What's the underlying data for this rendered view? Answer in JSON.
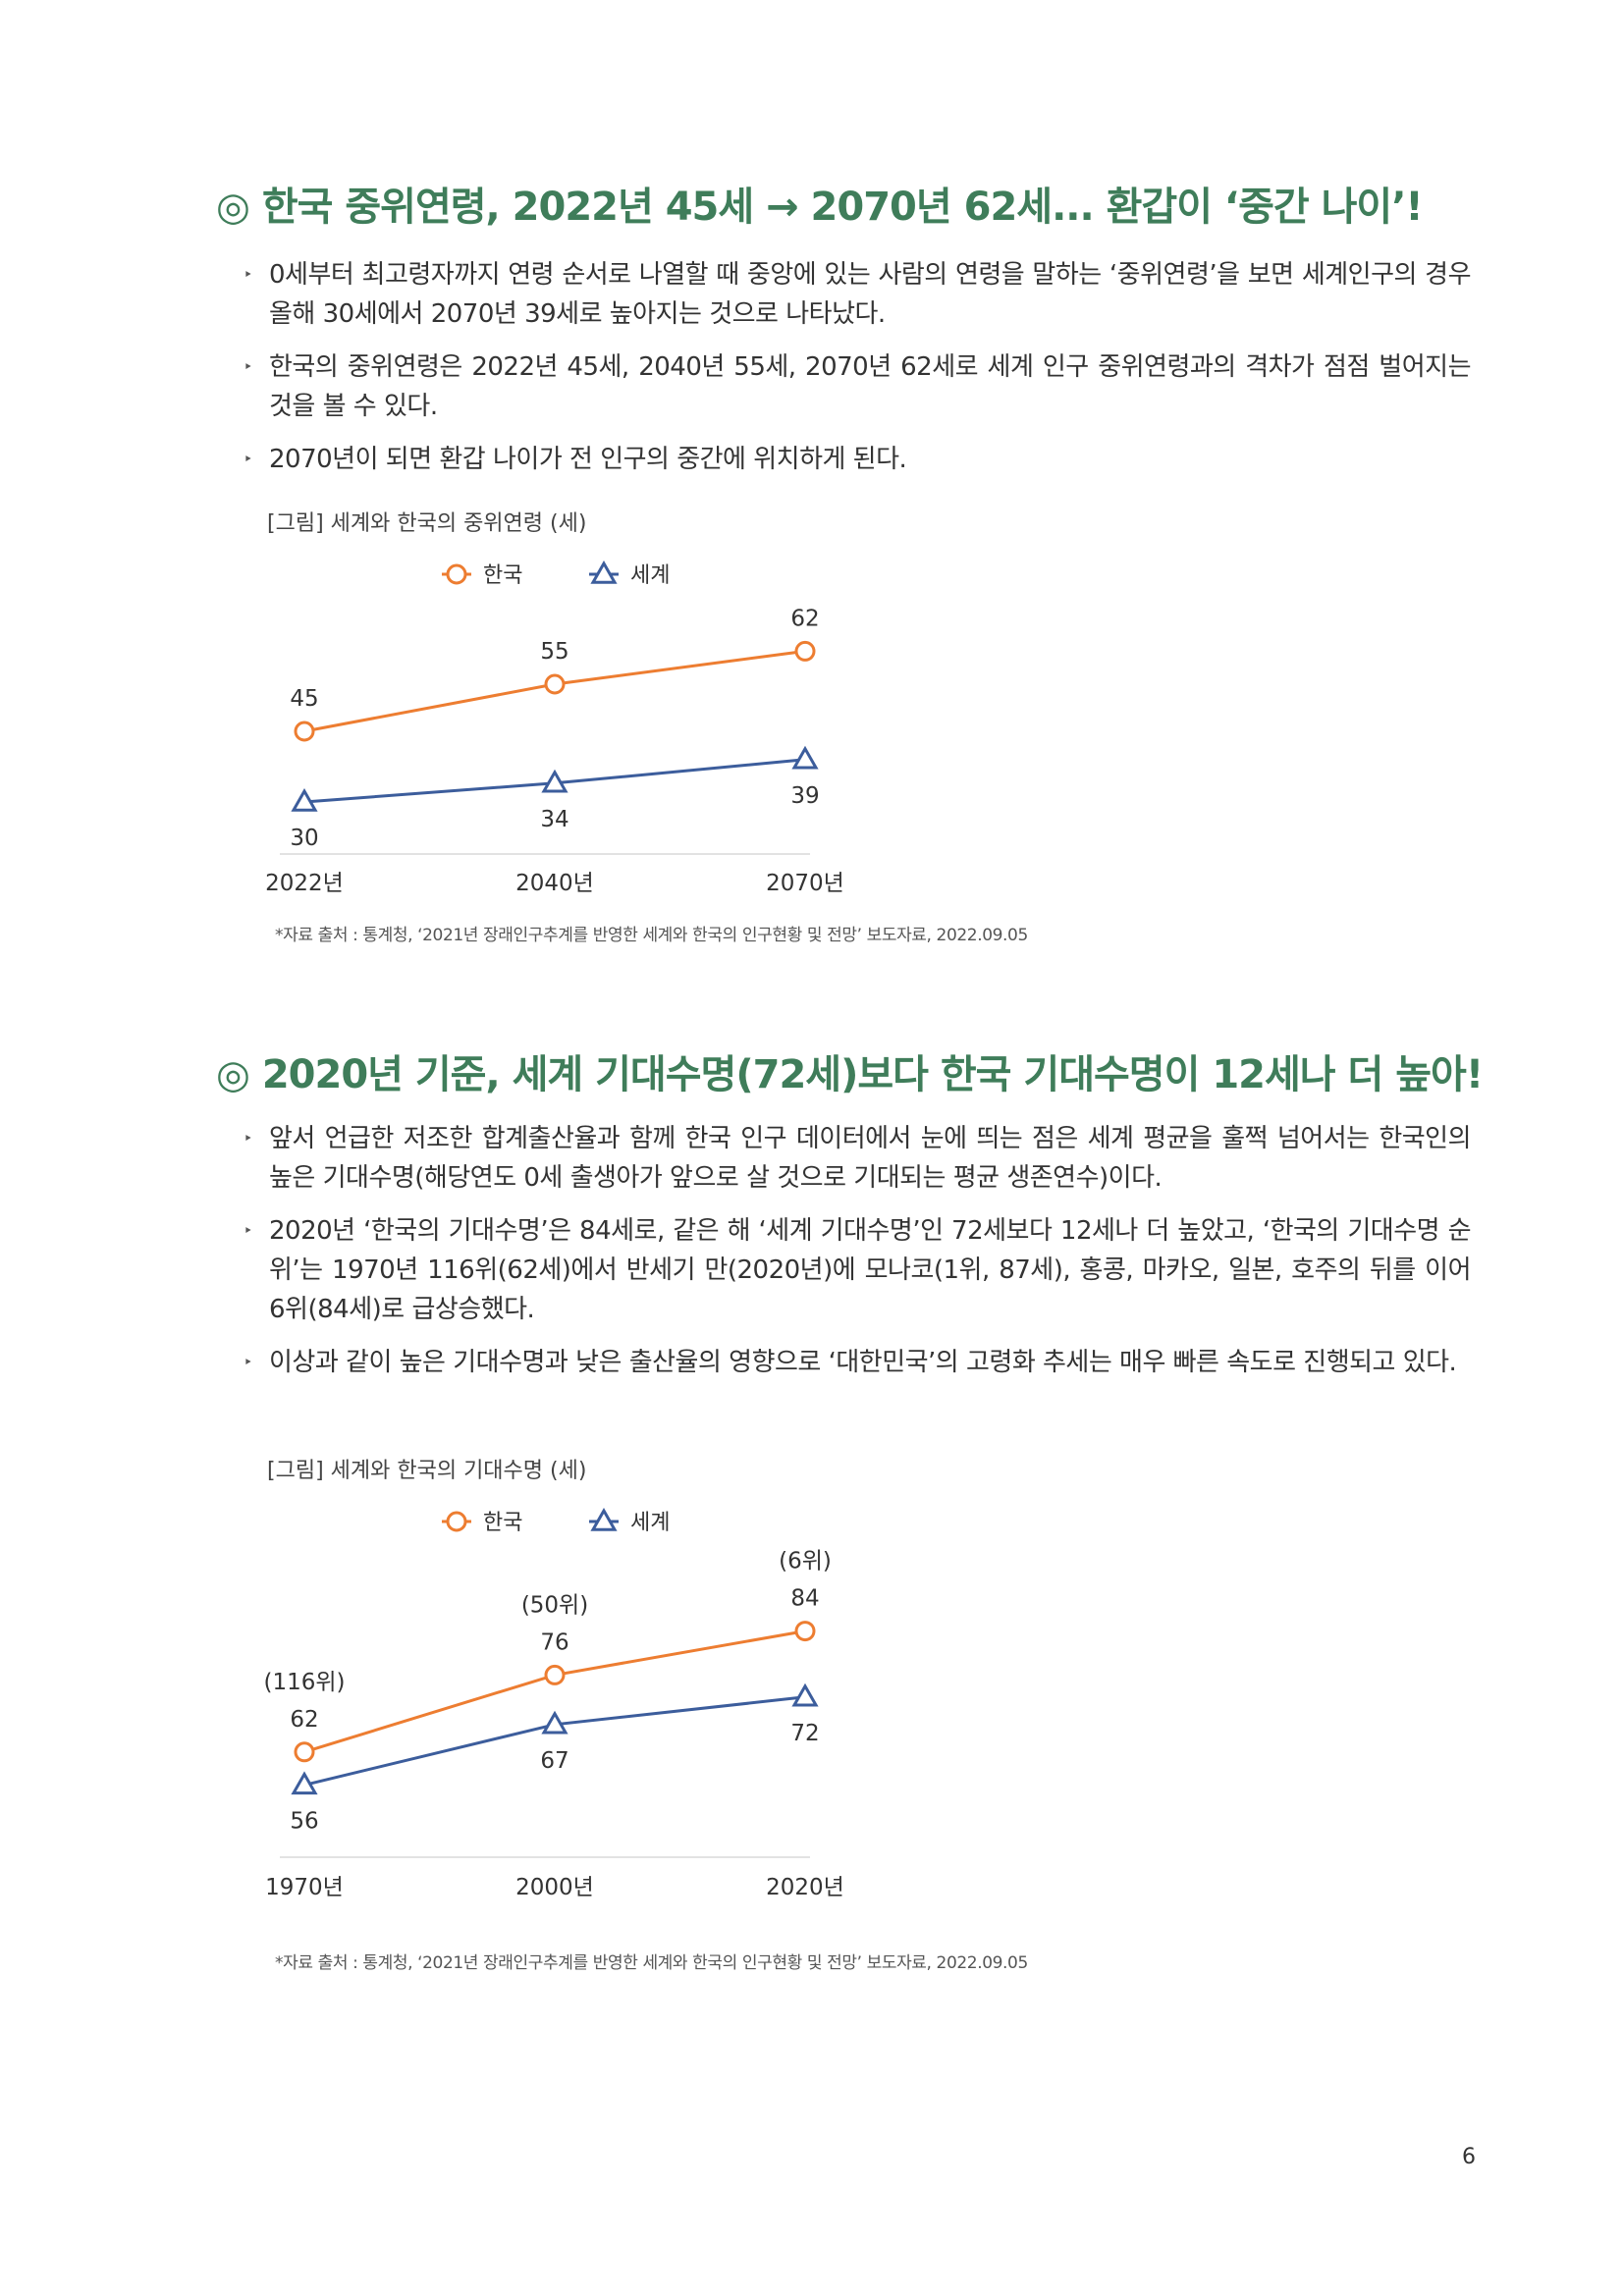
{
  "section1": {
    "heading": "◎ 한국 중위연령, 2022년 45세 → 2070년 62세... 환갑이 ‘중간 나이’!",
    "bullets": [
      "0세부터 최고령자까지 연령 순서로 나열할 때 중앙에 있는 사람의 연령을 말하는 ‘중위연령’을 보면 세계인구의 경우 올해 30세에서 2070년 39세로 높아지는 것으로 나타났다.",
      "한국의 중위연령은 2022년 45세, 2040년 55세, 2070년 62세로 세계 인구 중위연령과의 격차가 점점 벌어지는 것을 볼 수 있다.",
      "2070년이 되면 환갑 나이가 전 인구의 중간에 위치하게 된다."
    ],
    "figure_title": "[그림] 세계와 한국의 중위연령 (세)",
    "source": "*자료 출처 : 통계청, ‘2021년 장래인구추계를 반영한 세계와 한국의 인구현황 및 전망’ 보도자료, 2022.09.05"
  },
  "section2": {
    "heading": "◎ 2020년 기준, 세계 기대수명(72세)보다 한국 기대수명이 12세나 더 높아!",
    "bullets": [
      "앞서 언급한 저조한 합계출산율과 함께 한국 인구 데이터에서 눈에 띄는 점은 세계 평균을 훌쩍 넘어서는 한국인의 높은 기대수명(해당연도 0세 출생아가 앞으로 살 것으로 기대되는 평균 생존연수)이다.",
      "2020년 ‘한국의 기대수명’은 84세로, 같은 해 ‘세계 기대수명’인 72세보다 12세나 더 높았고, ‘한국의 기대수명 순위’는 1970년 116위(62세)에서 반세기 만(2020년)에 모나코(1위, 87세), 홍콩, 마카오, 일본, 호주의 뒤를 이어 6위(84세)로 급상승했다.",
      "이상과 같이 높은 기대수명과 낮은 출산율의 영향으로 ‘대한민국’의 고령화 추세는 매우 빠른 속도로 진행되고 있다."
    ],
    "figure_title": "[그림] 세계와 한국의 기대수명 (세)",
    "source": "*자료 출처 : 통계청, ‘2021년 장래인구추계를 반영한 세계와 한국의 인구현황 및 전망’ 보도자료, 2022.09.05"
  },
  "bullet_marker": "‣",
  "page_number": "6",
  "colors": {
    "heading": "#3f7d5a",
    "korea": "#ed7d31",
    "world": "#3c5d9c"
  },
  "chart_data": [
    {
      "type": "line",
      "categories": [
        "2022년",
        "2040년",
        "2070년"
      ],
      "series": [
        {
          "name": "한국",
          "values": [
            45,
            55,
            62
          ],
          "marker": "circle"
        },
        {
          "name": "세계",
          "values": [
            30,
            34,
            39
          ],
          "marker": "triangle"
        }
      ],
      "legend": "top-center",
      "ylim": [
        20,
        70
      ]
    },
    {
      "type": "line",
      "categories": [
        "1970년",
        "2000년",
        "2020년"
      ],
      "series": [
        {
          "name": "한국",
          "values": [
            62,
            76,
            84
          ],
          "marker": "circle",
          "annotations": [
            "(116위)",
            "(50위)",
            "(6위)"
          ]
        },
        {
          "name": "세계",
          "values": [
            56,
            67,
            72
          ],
          "marker": "triangle"
        }
      ],
      "legend": "top-center",
      "ylim": [
        45,
        95
      ]
    }
  ]
}
